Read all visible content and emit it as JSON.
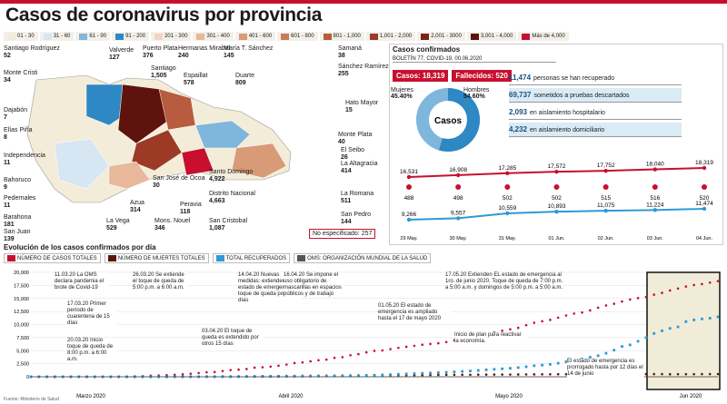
{
  "title": "Casos de coronavirus por provincia",
  "legend_ranges": [
    {
      "label": "01 - 30",
      "color": "#f3ecd9"
    },
    {
      "label": "31 - 60",
      "color": "#d6e6f2"
    },
    {
      "label": "61 - 90",
      "color": "#7fb6dc"
    },
    {
      "label": "91 - 200",
      "color": "#2d88c3"
    },
    {
      "label": "201 - 300",
      "color": "#f2d4c0"
    },
    {
      "label": "301 - 400",
      "color": "#e8b89a"
    },
    {
      "label": "401 - 600",
      "color": "#d99a78"
    },
    {
      "label": "601 - 800",
      "color": "#c97a59"
    },
    {
      "label": "801 - 1,000",
      "color": "#b85b3e"
    },
    {
      "label": "1,001 - 2,000",
      "color": "#9c3a26"
    },
    {
      "label": "2,001 - 3000",
      "color": "#7a2418"
    },
    {
      "label": "3,001 - 4,000",
      "color": "#5e130d"
    },
    {
      "label": "Más de 4,000",
      "color": "#c8102e"
    }
  ],
  "provinces": [
    {
      "name": "Santiago Rodríguez",
      "value": "52"
    },
    {
      "name": "Monte Cristi",
      "value": "34"
    },
    {
      "name": "Dajabón",
      "value": "7"
    },
    {
      "name": "Elías Piña",
      "value": "8"
    },
    {
      "name": "Independencia",
      "value": "11"
    },
    {
      "name": "Bahoruco",
      "value": "9"
    },
    {
      "name": "Pedernales",
      "value": "11"
    },
    {
      "name": "Barahona",
      "value": "181"
    },
    {
      "name": "San Juan",
      "value": "139"
    },
    {
      "name": "Valverde",
      "value": "127"
    },
    {
      "name": "Puerto Plata",
      "value": "376"
    },
    {
      "name": "Santiago",
      "value": "1,505"
    },
    {
      "name": "Hermanas Mirabal",
      "value": "240"
    },
    {
      "name": "Espaillat",
      "value": "578"
    },
    {
      "name": "María T. Sánchez",
      "value": "145"
    },
    {
      "name": "Duarte",
      "value": "809"
    },
    {
      "name": "Samaná",
      "value": "38"
    },
    {
      "name": "Sánchez Ramírez",
      "value": "255"
    },
    {
      "name": "Hato Mayor",
      "value": "15"
    },
    {
      "name": "Monte Plata",
      "value": "40"
    },
    {
      "name": "El Seibo",
      "value": "26"
    },
    {
      "name": "La Altagracia",
      "value": "414"
    },
    {
      "name": "La Romana",
      "value": "511"
    },
    {
      "name": "San Pedro",
      "value": "144"
    },
    {
      "name": "Santo Domingo",
      "value": "4,922"
    },
    {
      "name": "Distrito Nacional",
      "value": "4,663"
    },
    {
      "name": "San Cristobal",
      "value": "1,087"
    },
    {
      "name": "Peravia",
      "value": "118"
    },
    {
      "name": "Mons. Nouel",
      "value": "346"
    },
    {
      "name": "San José de Ocoa",
      "value": "30"
    },
    {
      "name": "Azua",
      "value": "314"
    },
    {
      "name": "La Vega",
      "value": "529"
    }
  ],
  "no_specified": "No especificado: 257",
  "confirmed_panel": {
    "heading": "Casos confirmados",
    "bulletin": "BOLETÍN 77, COVID-19, 00.06.2020",
    "cases_label": "Casos:",
    "cases_value": "18,319",
    "deaths_label": "Fallecidos:",
    "deaths_value": "520",
    "women_label": "Mujeres",
    "women_pct": "45.40%",
    "men_label": "Hombres",
    "men_pct": "54.60%",
    "donut_center": "Casos",
    "stats": [
      {
        "value": "11,474",
        "text": "personas se han recuperado"
      },
      {
        "value": "69,737",
        "text": "sometidos a pruebas descartados"
      },
      {
        "value": "2,093",
        "text": "en aislamiento hospitalario"
      },
      {
        "value": "4,232",
        "text": "en aislamiento domiciliario"
      }
    ]
  },
  "chart_data": [
    {
      "type": "line",
      "title": "",
      "x": [
        "29 May.",
        "30 May.",
        "31 May.",
        "01 Jun.",
        "02 Jun.",
        "03 Jun.",
        "04 Jun."
      ],
      "series": [
        {
          "values": [
            16531,
            16908,
            17285,
            17572,
            17752,
            18040,
            18319
          ],
          "color": "#c8102e"
        },
        {
          "values": [
            488,
            498,
            502,
            502,
            515,
            516,
            520
          ],
          "color": "#c8102e"
        },
        {
          "values": [
            9266,
            9557,
            10559,
            10893,
            11075,
            11224,
            11474
          ],
          "color": "#2d9ad6"
        }
      ]
    },
    {
      "type": "line",
      "title": "Evolución de los casos confirmados por día",
      "ylim": [
        0,
        20000
      ],
      "yticks": [
        "0",
        "2,500",
        "5,000",
        "7,500",
        "10,000",
        "12,500",
        "15,000",
        "17,500",
        "20,000"
      ],
      "month_labels": [
        "Marzo 2020",
        "Abril 2020",
        "Mayo 2020",
        "Jun 2020"
      ],
      "legend": [
        "NÚMERO DE CASOS TOTALES",
        "NÚMERO DE MUERTES TOTALES",
        "TOTAL RECUPERADOS",
        "OMS: ORGANIZACIÓN MUNDIAL DE LA SALUD"
      ],
      "series": [
        {
          "name": "NÚMERO DE CASOS TOTALES",
          "color": "#c8102e",
          "values": [
            1,
            1,
            1,
            2,
            5,
            5,
            5,
            11,
            11,
            11,
            21,
            21,
            34,
            72,
            112,
            202,
            245,
            312,
            392,
            488,
            581,
            719,
            859,
            901,
            1109,
            1284,
            1380,
            1488,
            1745,
            1828,
            1956,
            2111,
            2349,
            2620,
            2759,
            2967,
            3167,
            3286,
            3614,
            3755,
            4126,
            4335,
            4680,
            4964,
            5044,
            5300,
            5543,
            5749,
            5926,
            6135,
            6293,
            6416,
            6652,
            6972,
            7288,
            7578,
            7954,
            8235,
            8480,
            8807,
            9095,
            9376,
            9882,
            10347,
            10634,
            10900,
            11320,
            11739,
            12110,
            12314,
            12725,
            13223,
            13657,
            13989,
            14422,
            14801,
            15073,
            15264,
            15723,
            16068,
            16531,
            16908,
            17285,
            17572,
            17752,
            18040,
            18319
          ]
        },
        {
          "name": "NÚMERO DE MUERTES TOTALES",
          "color": "#5e130d",
          "values": [
            0,
            0,
            0,
            0,
            0,
            0,
            0,
            0,
            0,
            0,
            0,
            1,
            2,
            3,
            3,
            3,
            6,
            10,
            20,
            28,
            39,
            42,
            51,
            60,
            68,
            82,
            86,
            98,
            108,
            118,
            126,
            135,
            159,
            173,
            183,
            189,
            196,
            200,
            217,
            226,
            235,
            245,
            260,
            265,
            273,
            282,
            286,
            293,
            301,
            313,
            326,
            354,
            373,
            385,
            387,
            393,
            409,
            420,
            424,
            428,
            434,
            441,
            456,
            460,
            474,
            478,
            485,
            488,
            495,
            498,
            502,
            502,
            502,
            502,
            505,
            507,
            510,
            512,
            513,
            515,
            488,
            498,
            502,
            502,
            515,
            516,
            520
          ]
        },
        {
          "name": "TOTAL RECUPERADOS",
          "color": "#2d9ad6",
          "values": [
            0,
            0,
            0,
            0,
            0,
            0,
            0,
            0,
            0,
            0,
            0,
            0,
            0,
            0,
            0,
            3,
            3,
            3,
            4,
            5,
            6,
            6,
            9,
            9,
            18,
            18,
            24,
            41,
            45,
            52,
            60,
            72,
            85,
            98,
            117,
            128,
            142,
            158,
            177,
            194,
            213,
            234,
            258,
            301,
            360,
            410,
            474,
            538,
            600,
            668,
            720,
            786,
            868,
            944,
            1019,
            1115,
            1215,
            1334,
            1432,
            1531,
            1627,
            1756,
            1922,
            2113,
            2236,
            2378,
            2591,
            2865,
            3133,
            3408,
            3735,
            4030,
            4500,
            5100,
            5800,
            6100,
            6800,
            7500,
            8300,
            8800,
            9266,
            9557,
            10559,
            10893,
            11075,
            11224,
            11474
          ]
        }
      ],
      "annotations": [
        "11.03.20 La OMS declara pandemia el brote de Covid-19",
        "17.03.20 Primer período de cuarentena de 15 días",
        "20.03.20 Inicio toque de queda de 8:00 p.m. a 6:00 a.m.",
        "26.03.20 Se extiende el toque de queda de 5:00 p.m. a 6:00 a.m.",
        "03.04.20 El toque de queda es extendido por otros 15 días",
        "14.04.20 Nuevas medidas: extienden el estado de emergencia y toque de queda por 17 días",
        "16.04.20 Se impone el uso obligatorio de mascarillas en espacios públicos y de trabajo",
        "01.05.20 El estado de emergencia es ampliado hasta el 17 de mayo 2020",
        "17.05.20 Extienden EL estado de emergencia al 1ro. de junio 2020. Toque de queda de 7:00 p.m. a 5:00 a.m. y domingos de 5:00 p.m. a 5:00 a.m.",
        "Inicio de plan para reactivar la economía.",
        "El estado de emergencia es prorrogado hasta por 12 días el 14 de junio"
      ]
    }
  ],
  "labels": {
    "recover_top": "29 May.",
    "source": "Fuente: Ministerio de Salud"
  }
}
